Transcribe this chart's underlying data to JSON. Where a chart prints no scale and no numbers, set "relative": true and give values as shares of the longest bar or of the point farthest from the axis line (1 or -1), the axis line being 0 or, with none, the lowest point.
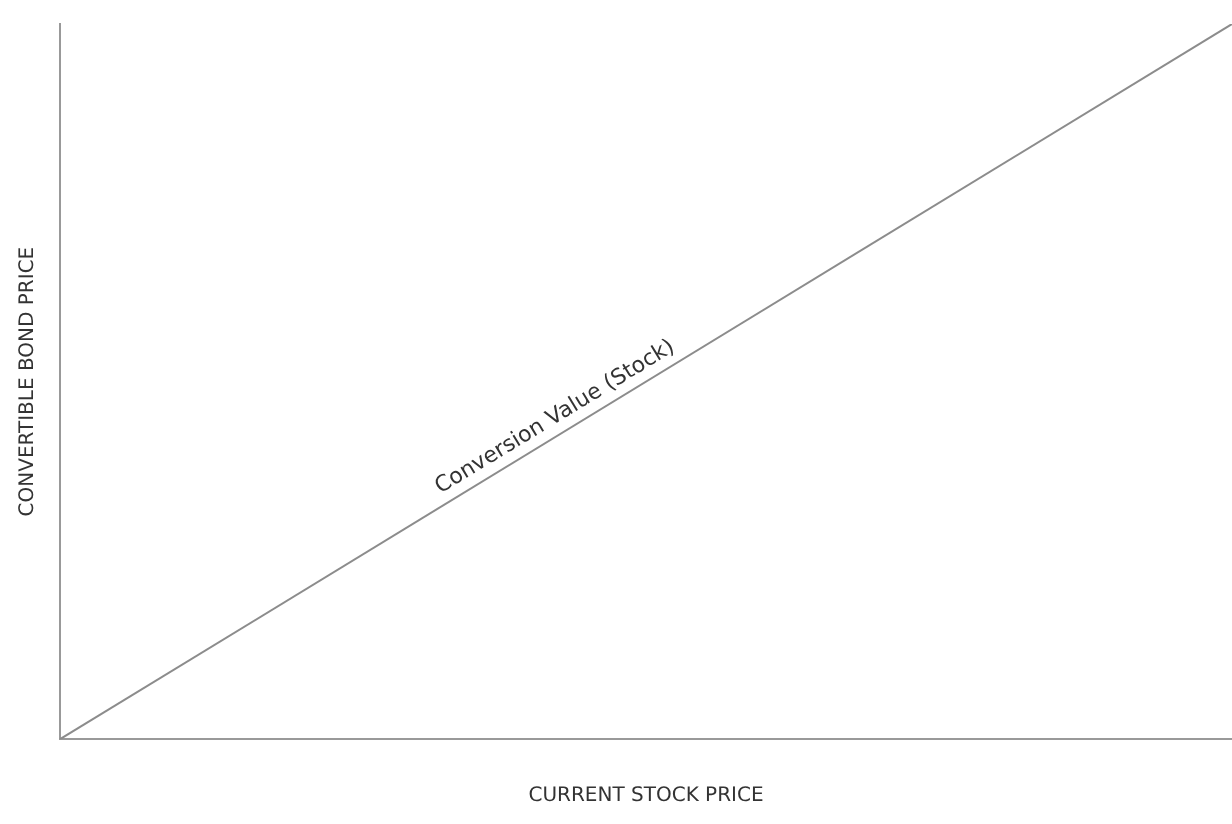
{
  "chart_data": {
    "type": "line",
    "relative": true,
    "categories": [
      null,
      null
    ],
    "series": [
      {
        "color": "#8c8c8c",
        "values": [
          0,
          1
        ]
      }
    ],
    "xlabel": "CURRENT STOCK PRICE",
    "ylabel": "CONVERTIBLE BOND PRICE",
    "annotations": [
      "Conversion Value (Stock)"
    ],
    "grid": false,
    "legend": false,
    "marker": "none",
    "line_style": "solid"
  }
}
